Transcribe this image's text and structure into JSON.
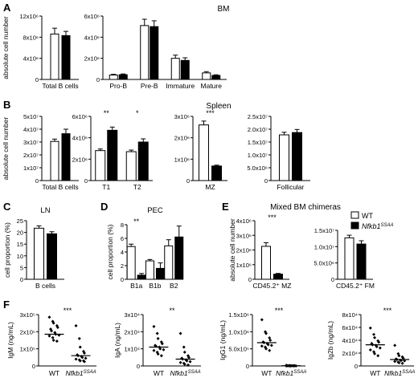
{
  "panel_letters": [
    "A",
    "B",
    "C",
    "D",
    "E",
    "F"
  ],
  "group_titles": {
    "bm": "BM",
    "spleen": "Spleen",
    "mixed": "Mixed BM chimeras"
  },
  "legend": [
    {
      "label": "WT",
      "fill": "#ffffff"
    },
    {
      "label_main": "Nfkb1",
      "label_sup": "SSAA",
      "fill": "#000000"
    }
  ],
  "colors": {
    "wt": "#ffffff",
    "mutant": "#000000",
    "stroke": "#000000"
  },
  "chart_data": [
    {
      "id": "A1",
      "type": "bar",
      "ylabel": "absolute cell number",
      "ylim": [
        0,
        12
      ],
      "ticks": [
        "0",
        "4x10⁶",
        "8x10⁶",
        "12x10⁶"
      ],
      "categories": [
        "Total B cells"
      ],
      "sig": [
        ""
      ],
      "series": [
        {
          "name": "WT",
          "values": [
            8.6
          ],
          "err": [
            1.1
          ]
        },
        {
          "name": "Nfkb1SSAA",
          "values": [
            8.3
          ],
          "err": [
            0.8
          ]
        }
      ]
    },
    {
      "id": "A2",
      "type": "bar",
      "ylim": [
        0,
        6
      ],
      "ticks": [
        "0",
        "2x10⁶",
        "4x10⁶",
        "6x10⁶"
      ],
      "categories": [
        "Pro-B",
        "Pre-B",
        "Immature",
        "Mature"
      ],
      "sig": [
        "",
        "",
        "",
        ""
      ],
      "series": [
        {
          "name": "WT",
          "values": [
            0.42,
            5.1,
            2.0,
            0.62
          ],
          "err": [
            0.07,
            0.6,
            0.3,
            0.12
          ]
        },
        {
          "name": "Nfkb1SSAA",
          "values": [
            0.45,
            5.0,
            1.8,
            0.38
          ],
          "err": [
            0.07,
            0.55,
            0.25,
            0.06
          ]
        }
      ]
    },
    {
      "id": "B1",
      "type": "bar",
      "ylabel": "absolute cell number",
      "ylim": [
        0,
        5
      ],
      "ticks": [
        "0",
        "1x10⁷",
        "2x10⁷",
        "3x10⁷",
        "4x10⁷",
        "5x10⁷"
      ],
      "categories": [
        "Total B cells"
      ],
      "sig": [
        ""
      ],
      "series": [
        {
          "name": "WT",
          "values": [
            3.05
          ],
          "err": [
            0.18
          ]
        },
        {
          "name": "Nfkb1SSAA",
          "values": [
            3.65
          ],
          "err": [
            0.35
          ]
        }
      ]
    },
    {
      "id": "B2",
      "type": "bar",
      "ylim": [
        0,
        6
      ],
      "ticks": [
        "0",
        "2x10⁶",
        "4x10⁶",
        "6x10⁶"
      ],
      "categories": [
        "T1",
        "T2"
      ],
      "sig": [
        "**",
        "*"
      ],
      "series": [
        {
          "name": "WT",
          "values": [
            2.8,
            2.7
          ],
          "err": [
            0.15,
            0.15
          ]
        },
        {
          "name": "Nfkb1SSAA",
          "values": [
            4.7,
            3.6
          ],
          "err": [
            0.3,
            0.3
          ]
        }
      ]
    },
    {
      "id": "B3",
      "type": "bar",
      "ylim": [
        0,
        3
      ],
      "ticks": [
        "0",
        "1x10⁶",
        "2x10⁶",
        "3x10⁶"
      ],
      "categories": [
        "MZ"
      ],
      "sig": [
        "***"
      ],
      "series": [
        {
          "name": "WT",
          "values": [
            2.6
          ],
          "err": [
            0.18
          ]
        },
        {
          "name": "Nfkb1SSAA",
          "values": [
            0.68
          ],
          "err": [
            0.04
          ]
        }
      ]
    },
    {
      "id": "B4",
      "type": "bar",
      "ylim": [
        0,
        2.5
      ],
      "ticks": [
        "0",
        "5.0x10⁶",
        "1.0x10⁷",
        "1.5x10⁷",
        "2.0x10⁷",
        "2.5x10⁷"
      ],
      "categories": [
        "Follicular"
      ],
      "sig": [
        ""
      ],
      "series": [
        {
          "name": "WT",
          "values": [
            1.78
          ],
          "err": [
            0.1
          ]
        },
        {
          "name": "Nfkb1SSAA",
          "values": [
            1.87
          ],
          "err": [
            0.12
          ]
        }
      ]
    },
    {
      "id": "C",
      "type": "bar",
      "title": "LN",
      "ylabel": "cell proportion (%)",
      "ylim": [
        0,
        25
      ],
      "ticks": [
        "0",
        "5",
        "10",
        "15",
        "20",
        "25"
      ],
      "categories": [
        "B cells"
      ],
      "sig": [
        ""
      ],
      "series": [
        {
          "name": "WT",
          "values": [
            21.8
          ],
          "err": [
            1.0
          ]
        },
        {
          "name": "Nfkb1SSAA",
          "values": [
            19.4
          ],
          "err": [
            0.9
          ]
        }
      ]
    },
    {
      "id": "D",
      "type": "bar",
      "title": "PEC",
      "ylabel": "cell proportion (%)",
      "ylim": [
        0,
        8
      ],
      "ticks": [
        "0",
        "2",
        "4",
        "6",
        "8"
      ],
      "categories": [
        "B1a",
        "B1b",
        "B2"
      ],
      "sig": [
        "**",
        "",
        ""
      ],
      "series": [
        {
          "name": "WT",
          "values": [
            4.8,
            2.7,
            4.9
          ],
          "err": [
            0.35,
            0.2,
            0.9
          ]
        },
        {
          "name": "Nfkb1SSAA",
          "values": [
            0.6,
            1.6,
            6.2
          ],
          "err": [
            0.25,
            0.8,
            1.6
          ]
        }
      ]
    },
    {
      "id": "E1",
      "type": "bar",
      "ylabel": "absolute cell number",
      "ylim": [
        0,
        4
      ],
      "ticks": [
        "0",
        "1x10⁶",
        "2x10⁶",
        "3x10⁶",
        "4x10⁶"
      ],
      "categories": [
        "CD45.2⁺ MZ"
      ],
      "sig": [
        "***"
      ],
      "series": [
        {
          "name": "WT",
          "values": [
            2.25
          ],
          "err": [
            0.25
          ]
        },
        {
          "name": "Nfkb1SSAA",
          "values": [
            0.35
          ],
          "err": [
            0.05
          ]
        }
      ]
    },
    {
      "id": "E2",
      "type": "bar",
      "ylim": [
        0,
        1.5
      ],
      "ticks": [
        "0",
        "5.0x10⁶",
        "1.0x10⁷",
        "1.5x10⁷"
      ],
      "categories": [
        "CD45.2⁺ FM"
      ],
      "sig": [
        ""
      ],
      "series": [
        {
          "name": "WT",
          "values": [
            1.27
          ],
          "err": [
            0.08
          ]
        },
        {
          "name": "Nfkb1SSAA",
          "values": [
            1.08
          ],
          "err": [
            0.1
          ]
        }
      ]
    },
    {
      "id": "F1",
      "type": "scatter",
      "ylabel": "IgM (ng/mL)",
      "sig": "***",
      "ylim": [
        0,
        3
      ],
      "ticks": [
        "0",
        "1x10⁵",
        "2x10⁵",
        "3x10⁵"
      ],
      "groups": [
        {
          "label": "WT",
          "median": 1.85,
          "points": [
            2.85,
            2.6,
            2.5,
            2.35,
            2.25,
            2.15,
            2.05,
            1.95,
            1.85,
            1.8,
            1.75,
            1.65,
            1.5,
            1.45
          ]
        },
        {
          "label_main": "Nfkb1",
          "label_sup": "SSAA",
          "median": 0.6,
          "points": [
            2.35,
            1.6,
            1.1,
            0.85,
            0.75,
            0.65,
            0.6,
            0.55,
            0.5,
            0.45,
            0.4,
            0.35,
            0.3,
            0.3,
            0.25
          ]
        }
      ]
    },
    {
      "id": "F2",
      "type": "scatter",
      "ylabel": "IgA (ng/mL)",
      "sig": "**",
      "ylim": [
        0,
        3
      ],
      "ticks": [
        "0",
        "1x10⁴",
        "2x10⁴",
        "3x10⁴"
      ],
      "groups": [
        {
          "label": "WT",
          "median": 1.1,
          "points": [
            2.3,
            1.9,
            1.6,
            1.4,
            1.3,
            1.2,
            1.15,
            1.1,
            1.0,
            0.95,
            0.9,
            0.8,
            0.7,
            0.6
          ]
        },
        {
          "label_main": "Nfkb1",
          "label_sup": "SSAA",
          "median": 0.4,
          "points": [
            1.9,
            1.1,
            0.8,
            0.6,
            0.5,
            0.45,
            0.4,
            0.35,
            0.3,
            0.25,
            0.2,
            0.15,
            0.1,
            0.05
          ]
        }
      ]
    },
    {
      "id": "F3",
      "type": "scatter",
      "ylabel": "IgG1 (ng/mL)",
      "sig": "***",
      "ylim": [
        0,
        1.5
      ],
      "ticks": [
        "0",
        "5.0x10⁵",
        "1.0x10⁶",
        "1.5x10⁶"
      ],
      "groups": [
        {
          "label": "WT",
          "median": 0.68,
          "points": [
            1.35,
            1.0,
            0.95,
            0.82,
            0.75,
            0.7,
            0.68,
            0.65,
            0.62,
            0.6,
            0.58,
            0.55,
            0.5,
            0.45
          ]
        },
        {
          "label_main": "Nfkb1",
          "label_sup": "SSAA",
          "median": 0.005,
          "points": [
            0.02,
            0.015,
            0.01,
            0.01,
            0.01,
            0.005,
            0.005,
            0.005,
            0.005,
            0.0,
            0.0,
            0.0,
            0.0,
            0.0
          ]
        }
      ]
    },
    {
      "id": "F4",
      "type": "scatter",
      "ylabel": "Ig2b (ng/mL)",
      "sig": "***",
      "ylim": [
        0,
        8
      ],
      "ticks": [
        "0",
        "2x10⁴",
        "4x10⁴",
        "6x10⁴",
        "8x10⁴"
      ],
      "groups": [
        {
          "label": "WT",
          "median": 3.3,
          "points": [
            5.9,
            4.9,
            4.4,
            3.9,
            3.7,
            3.5,
            3.3,
            3.2,
            3.0,
            2.8,
            2.5,
            2.2,
            1.9,
            1.6
          ]
        },
        {
          "label_main": "Nfkb1",
          "label_sup": "SSAA",
          "median": 1.0,
          "points": [
            3.2,
            1.9,
            1.6,
            1.4,
            1.2,
            1.1,
            1.0,
            0.9,
            0.85,
            0.8,
            0.7,
            0.6,
            0.5,
            0.4
          ]
        }
      ]
    }
  ]
}
